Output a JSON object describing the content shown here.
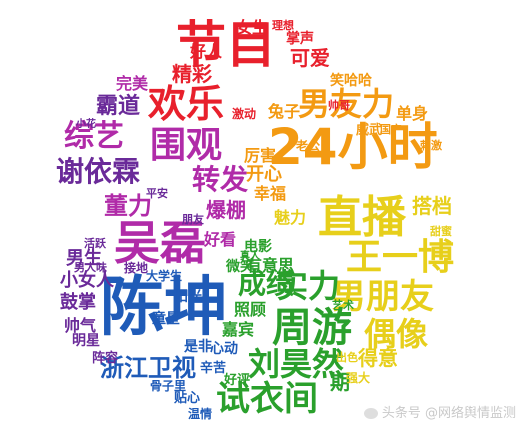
{
  "palette": {
    "red": "#e8202c",
    "orange": "#f39a12",
    "yellow": "#e7cf1b",
    "green": "#2aa02c",
    "blue": "#1f5bb8",
    "purple": "#6a2a99",
    "magenta": "#b02ba8"
  },
  "words": [
    {
      "text": "节目",
      "color": "red"
    },
    {
      "text": "欢乐",
      "color": "red"
    },
    {
      "text": "围观",
      "color": "magenta"
    },
    {
      "text": "综艺",
      "color": "magenta"
    },
    {
      "text": "谢依霖",
      "color": "purple"
    },
    {
      "text": "霸道",
      "color": "purple"
    },
    {
      "text": "吴磊",
      "color": "magenta"
    },
    {
      "text": "陈坤",
      "color": "blue"
    },
    {
      "text": "24小时",
      "color": "orange"
    },
    {
      "text": "男友力",
      "color": "orange"
    },
    {
      "text": "直播",
      "color": "yellow"
    },
    {
      "text": "王一博",
      "color": "yellow"
    },
    {
      "text": "男朋友",
      "color": "yellow"
    },
    {
      "text": "偶像",
      "color": "yellow"
    },
    {
      "text": "周游",
      "color": "green"
    },
    {
      "text": "刘昊然",
      "color": "green"
    },
    {
      "text": "试衣间",
      "color": "green"
    },
    {
      "text": "实力",
      "color": "green"
    },
    {
      "text": "成绩",
      "color": "green"
    },
    {
      "text": "浙江卫视",
      "color": "blue"
    },
    {
      "text": "转发",
      "color": "magenta"
    },
    {
      "text": "董力",
      "color": "magenta"
    },
    {
      "text": "爆棚",
      "color": "magenta"
    },
    {
      "text": "精彩",
      "color": "red"
    },
    {
      "text": "可爱",
      "color": "red"
    },
    {
      "text": "女生",
      "color": "red"
    },
    {
      "text": "好人",
      "color": "red"
    },
    {
      "text": "掌声",
      "color": "red"
    },
    {
      "text": "完美",
      "color": "magenta"
    },
    {
      "text": "开心",
      "color": "orange"
    },
    {
      "text": "厉害",
      "color": "orange"
    },
    {
      "text": "幸福",
      "color": "orange"
    },
    {
      "text": "兔子",
      "color": "orange"
    },
    {
      "text": "笑哈哈",
      "color": "orange"
    },
    {
      "text": "单身",
      "color": "orange"
    },
    {
      "text": "搭档",
      "color": "yellow"
    },
    {
      "text": "魅力",
      "color": "yellow"
    },
    {
      "text": "男生",
      "color": "purple"
    },
    {
      "text": "小女人",
      "color": "purple"
    },
    {
      "text": "鼓掌",
      "color": "purple"
    },
    {
      "text": "帅气",
      "color": "purple"
    },
    {
      "text": "明星",
      "color": "purple"
    },
    {
      "text": "阵容",
      "color": "purple"
    },
    {
      "text": "好看",
      "color": "magenta"
    },
    {
      "text": "有意思",
      "color": "green"
    },
    {
      "text": "电影",
      "color": "green"
    },
    {
      "text": "照顾",
      "color": "green"
    },
    {
      "text": "嘉宾",
      "color": "green"
    },
    {
      "text": "微笑",
      "color": "green"
    },
    {
      "text": "阳光",
      "color": "blue"
    },
    {
      "text": "童星",
      "color": "blue"
    },
    {
      "text": "是非",
      "color": "blue"
    },
    {
      "text": "心动",
      "color": "blue"
    },
    {
      "text": "辛苦",
      "color": "blue"
    },
    {
      "text": "贴心",
      "color": "blue"
    },
    {
      "text": "温情",
      "color": "blue"
    },
    {
      "text": "好评",
      "color": "green"
    },
    {
      "text": "得意",
      "color": "yellow"
    },
    {
      "text": "大学生",
      "color": "blue"
    },
    {
      "text": "接地",
      "color": "purple"
    },
    {
      "text": "骨子里",
      "color": "blue"
    },
    {
      "text": "男人味",
      "color": "purple"
    },
    {
      "text": "活跃",
      "color": "purple"
    },
    {
      "text": "理想",
      "color": "red"
    },
    {
      "text": "激动",
      "color": "red"
    },
    {
      "text": "小花",
      "color": "purple"
    },
    {
      "text": "刺激",
      "color": "orange"
    },
    {
      "text": "甜蜜",
      "color": "yellow"
    },
    {
      "text": "出色",
      "color": "yellow"
    },
    {
      "text": "老公",
      "color": "orange"
    },
    {
      "text": "威武",
      "color": "orange"
    },
    {
      "text": "帅哥",
      "color": "red"
    },
    {
      "text": "朋友",
      "color": "purple"
    },
    {
      "text": "平安",
      "color": "purple"
    },
    {
      "text": "真人",
      "color": "green"
    },
    {
      "text": "期",
      "color": "green"
    },
    {
      "text": "强大",
      "color": "yellow"
    },
    {
      "text": "国产",
      "color": "orange"
    },
    {
      "text": "艺术",
      "color": "green"
    }
  ],
  "watermark": "头条号 @网络舆情监测"
}
